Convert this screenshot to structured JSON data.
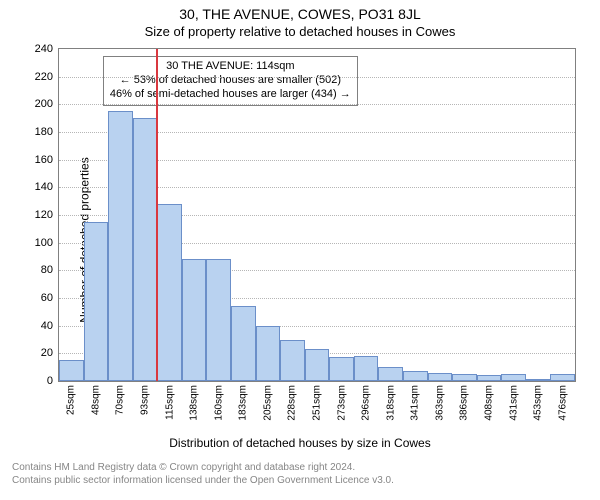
{
  "title": "30, THE AVENUE, COWES, PO31 8JL",
  "subtitle": "Size of property relative to detached houses in Cowes",
  "ylabel": "Number of detached properties",
  "xlabel": "Distribution of detached houses by size in Cowes",
  "footer_line1": "Contains HM Land Registry data © Crown copyright and database right 2024.",
  "footer_line2": "Contains public sector information licensed under the Open Government Licence v3.0.",
  "info_box": {
    "line1": "30 THE AVENUE: 114sqm",
    "line2": "← 53% of detached houses are smaller (502)",
    "line3": "46% of semi-detached houses are larger (434) →",
    "left_pct": 8.5,
    "top_pct": 2.2,
    "border_color": "#808080"
  },
  "chart": {
    "type": "histogram",
    "plot_bg": "#ffffff",
    "axis_color": "#808080",
    "grid_color": "#b6b6b6",
    "bar_fill": "#b9d2f0",
    "bar_border": "#6b8fc9",
    "marker_color": "#d9383f",
    "ylim": [
      0,
      240
    ],
    "yticks": [
      0,
      20,
      40,
      60,
      80,
      100,
      120,
      140,
      160,
      180,
      200,
      220,
      240
    ],
    "xticks": [
      "25sqm",
      "48sqm",
      "70sqm",
      "93sqm",
      "115sqm",
      "138sqm",
      "160sqm",
      "183sqm",
      "205sqm",
      "228sqm",
      "251sqm",
      "273sqm",
      "296sqm",
      "318sqm",
      "341sqm",
      "363sqm",
      "386sqm",
      "408sqm",
      "431sqm",
      "453sqm",
      "476sqm"
    ],
    "values": [
      15,
      115,
      195,
      190,
      128,
      88,
      88,
      54,
      40,
      30,
      23,
      17,
      18,
      10,
      7,
      6,
      5,
      4,
      5,
      1,
      5
    ],
    "marker_after_index": 3,
    "tick_fontsize": 11,
    "label_fontsize": 12,
    "title_fontsize": 14
  }
}
